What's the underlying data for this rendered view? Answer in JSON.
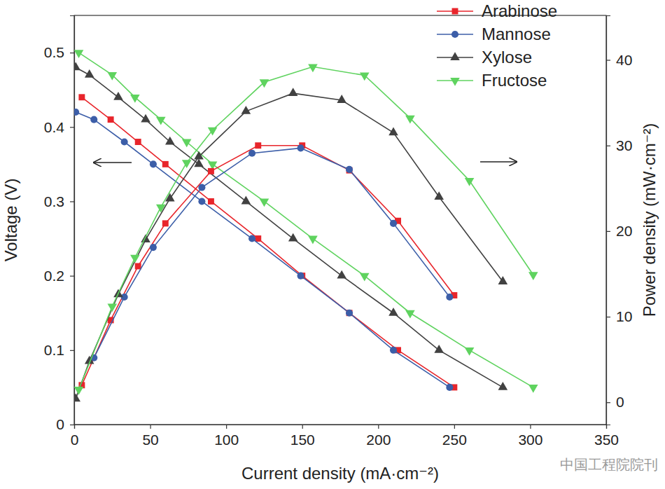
{
  "chart_data": {
    "type": "line",
    "x_label": "Current density (mA·cm⁻²)",
    "y_label": "Voltage (V)",
    "y2_label": "Power density (mW·cm⁻²)",
    "xlim": [
      0,
      350
    ],
    "xticks": [
      0,
      50,
      100,
      150,
      200,
      250,
      300,
      350
    ],
    "ylim": [
      0,
      0.55
    ],
    "yticks": [
      0,
      0.1,
      0.2,
      0.3,
      0.4,
      0.5
    ],
    "y2lim": [
      -2.6,
      45.2
    ],
    "y2ticks": [
      0,
      10,
      20,
      30,
      40
    ],
    "grid": false,
    "legend": "upper right",
    "annotations": [
      "中国工程院院刊"
    ],
    "series": [
      {
        "name": "Arabinose",
        "color": "#e8252b",
        "marker": "square",
        "line_style": "solid",
        "x": [
          5,
          24,
          42,
          60,
          90,
          121,
          150,
          181,
          213,
          250
        ],
        "values": [
          0.44,
          0.41,
          0.38,
          0.35,
          0.3,
          0.25,
          0.2,
          0.15,
          0.1,
          0.05
        ]
      },
      {
        "name": "Mannose",
        "color": "#3c5ea8",
        "marker": "circle",
        "line_style": "solid",
        "x": [
          1,
          13,
          33,
          52,
          84,
          117,
          149,
          181,
          210,
          247
        ],
        "values": [
          0.42,
          0.41,
          0.38,
          0.35,
          0.3,
          0.25,
          0.2,
          0.15,
          0.1,
          0.05
        ]
      },
      {
        "name": "Xylose",
        "color": "#414141",
        "marker": "triangle-up",
        "line_style": "solid",
        "x": [
          1,
          10,
          29,
          47,
          63,
          82,
          113,
          144,
          176,
          210,
          240,
          282
        ],
        "values": [
          0.48,
          0.47,
          0.44,
          0.41,
          0.38,
          0.35,
          0.3,
          0.25,
          0.2,
          0.15,
          0.1,
          0.05
        ]
      },
      {
        "name": "Fructose",
        "color": "#5fd35f",
        "marker": "triangle-down",
        "line_style": "solid",
        "x": [
          3,
          25,
          40,
          57,
          74,
          91,
          125,
          157,
          191,
          221,
          260,
          302
        ],
        "values": [
          0.5,
          0.47,
          0.44,
          0.41,
          0.38,
          0.35,
          0.3,
          0.25,
          0.2,
          0.15,
          0.1,
          0.05
        ]
      },
      {
        "name": "Arabinose",
        "color": "#e8252b",
        "marker": "square",
        "line_style": "solid",
        "axis": "y2",
        "x": [
          5,
          24,
          42,
          60,
          90,
          121,
          150,
          181,
          213,
          250
        ],
        "values": [
          2.0,
          9.6,
          15.9,
          20.9,
          27.0,
          30.0,
          30.0,
          27.1,
          21.2,
          12.5
        ]
      },
      {
        "name": "Mannose",
        "color": "#3c5ea8",
        "marker": "circle",
        "line_style": "solid",
        "axis": "y2",
        "x": [
          13,
          33,
          52,
          84,
          117,
          149,
          181,
          210,
          247
        ],
        "values": [
          5.2,
          12.3,
          18.1,
          25.1,
          29.1,
          29.7,
          27.2,
          20.9,
          12.3
        ]
      },
      {
        "name": "Xylose",
        "color": "#414141",
        "marker": "triangle-up",
        "line_style": "solid",
        "axis": "y2",
        "x": [
          1,
          10,
          29,
          47,
          63,
          82,
          113,
          144,
          176,
          210,
          240,
          282
        ],
        "values": [
          0.4,
          4.8,
          12.6,
          19.0,
          23.8,
          28.7,
          34.0,
          36.1,
          35.3,
          31.5,
          24.0,
          14.1
        ]
      },
      {
        "name": "Fructose",
        "color": "#5fd35f",
        "marker": "triangle-down",
        "line_style": "solid",
        "axis": "y2",
        "x": [
          3,
          25,
          40,
          57,
          74,
          91,
          125,
          157,
          191,
          221,
          260,
          302
        ],
        "values": [
          1.5,
          11.2,
          16.9,
          22.8,
          28.0,
          31.8,
          37.4,
          39.2,
          38.2,
          33.2,
          25.9,
          14.9
        ]
      }
    ]
  }
}
